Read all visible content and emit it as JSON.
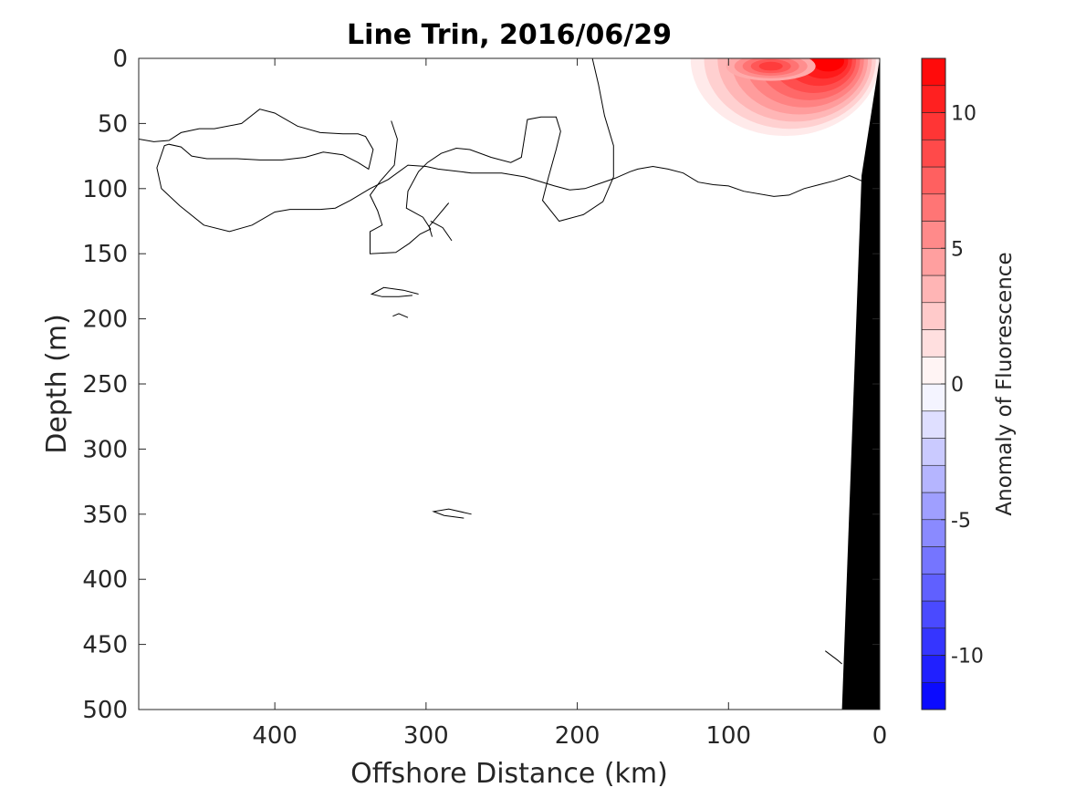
{
  "chart_data": {
    "type": "contour",
    "title": "Line Trin, 2016/06/29",
    "xlabel": "Offshore Distance (km)",
    "ylabel": "Depth (m)",
    "xlim": [
      490,
      0
    ],
    "ylim": [
      0,
      500
    ],
    "x_reversed": true,
    "y_reversed": true,
    "x_ticks": [
      400,
      300,
      200,
      100,
      0
    ],
    "y_ticks": [
      0,
      50,
      100,
      150,
      200,
      250,
      300,
      350,
      400,
      450,
      500
    ],
    "colorbar": {
      "label": "Anomaly of Fluorescence",
      "range": [
        -12,
        12
      ],
      "levels": [
        -12,
        -11,
        -10,
        -9,
        -8,
        -7,
        -6,
        -5,
        -4,
        -3,
        -2,
        -1,
        0,
        1,
        2,
        3,
        4,
        5,
        6,
        7,
        8,
        9,
        10,
        11,
        12
      ],
      "ticks": [
        -10,
        -5,
        0,
        5,
        10
      ],
      "colors": {
        "negative": "#0000ff",
        "zero": "#ffffff",
        "positive": "#ff0000"
      }
    },
    "contour_lines_km_m": [
      [
        [
          490,
          62
        ],
        [
          480,
          64
        ],
        [
          470,
          63
        ],
        [
          462,
          57
        ],
        [
          450,
          54
        ],
        [
          440,
          54
        ],
        [
          422,
          50
        ],
        [
          410,
          39
        ],
        [
          400,
          42
        ],
        [
          385,
          52
        ],
        [
          370,
          57
        ],
        [
          355,
          58
        ],
        [
          345,
          58
        ],
        [
          340,
          60
        ],
        [
          335,
          70
        ],
        [
          338,
          85
        ],
        [
          345,
          80
        ],
        [
          355,
          74
        ],
        [
          368,
          72
        ],
        [
          380,
          76
        ],
        [
          395,
          78
        ],
        [
          410,
          78
        ],
        [
          425,
          77
        ],
        [
          445,
          77
        ],
        [
          455,
          75
        ],
        [
          462,
          68
        ],
        [
          470,
          66
        ],
        [
          473,
          67
        ],
        [
          478,
          84
        ],
        [
          475,
          100
        ],
        [
          463,
          113
        ],
        [
          447,
          128
        ],
        [
          430,
          133
        ],
        [
          415,
          128
        ],
        [
          400,
          118
        ],
        [
          390,
          116
        ],
        [
          370,
          116
        ],
        [
          360,
          115
        ],
        [
          350,
          109
        ],
        [
          337,
          100
        ],
        [
          325,
          93
        ],
        [
          312,
          82
        ],
        [
          300,
          83
        ],
        [
          292,
          85
        ],
        [
          270,
          88
        ],
        [
          250,
          88
        ],
        [
          235,
          91
        ],
        [
          215,
          98
        ],
        [
          205,
          101
        ],
        [
          195,
          100
        ],
        [
          185,
          96
        ],
        [
          175,
          92
        ],
        [
          165,
          87
        ],
        [
          160,
          85
        ],
        [
          150,
          83
        ],
        [
          140,
          85
        ],
        [
          130,
          88
        ],
        [
          120,
          95
        ],
        [
          110,
          97
        ],
        [
          100,
          98
        ],
        [
          90,
          102
        ],
        [
          70,
          106
        ],
        [
          60,
          105
        ],
        [
          50,
          100
        ],
        [
          40,
          97
        ],
        [
          30,
          94
        ],
        [
          20,
          90
        ],
        [
          10,
          95
        ],
        [
          0,
          98
        ]
      ],
      [
        [
          190,
          0
        ],
        [
          186,
          20
        ],
        [
          182,
          44
        ],
        [
          176,
          67
        ],
        [
          176,
          91
        ],
        [
          183,
          110
        ],
        [
          196,
          120
        ],
        [
          212,
          125
        ],
        [
          223,
          109
        ],
        [
          219,
          91
        ],
        [
          214,
          70
        ],
        [
          211,
          56
        ],
        [
          214,
          45
        ],
        [
          224,
          45
        ],
        [
          233,
          47
        ],
        [
          237,
          76
        ],
        [
          244,
          80
        ],
        [
          257,
          76
        ],
        [
          271,
          70
        ],
        [
          280,
          69
        ],
        [
          290,
          73
        ],
        [
          299,
          80
        ],
        [
          305,
          87
        ],
        [
          312,
          102
        ],
        [
          313,
          115
        ],
        [
          302,
          122
        ],
        [
          297,
          131
        ],
        [
          304,
          135
        ],
        [
          311,
          142
        ],
        [
          320,
          149
        ],
        [
          337,
          150
        ],
        [
          337,
          133
        ],
        [
          329,
          128
        ],
        [
          332,
          117
        ],
        [
          337,
          105
        ],
        [
          330,
          94
        ],
        [
          321,
          82
        ],
        [
          319,
          62
        ],
        [
          323,
          48
        ]
      ],
      [
        [
          285,
          111
        ],
        [
          298,
          129
        ],
        [
          296,
          137
        ]
      ],
      [
        [
          283,
          140
        ],
        [
          289,
          130
        ],
        [
          297,
          125
        ]
      ],
      [
        [
          305,
          181
        ],
        [
          315,
          178
        ],
        [
          328,
          176
        ],
        [
          336,
          181
        ],
        [
          329,
          183
        ],
        [
          318,
          183
        ],
        [
          309,
          182
        ]
      ],
      [
        [
          270,
          350
        ],
        [
          285,
          346
        ],
        [
          295,
          348
        ],
        [
          288,
          351
        ],
        [
          275,
          353
        ]
      ],
      [
        [
          312,
          199
        ],
        [
          318,
          196
        ],
        [
          322,
          198
        ]
      ],
      [
        [
          0,
          440
        ],
        [
          5,
          437
        ],
        [
          0,
          472
        ],
        [
          10,
          471
        ],
        [
          1,
          474
        ]
      ],
      [
        [
          36,
          455
        ],
        [
          28,
          462
        ],
        [
          25,
          465
        ]
      ],
      [
        [
          0,
          500
        ],
        [
          5,
          505
        ]
      ]
    ],
    "positive_anomaly_patch": {
      "x_km": [
        115,
        10
      ],
      "depth_m": [
        0,
        50
      ],
      "peak_value": 12
    },
    "bathymetry": {
      "surface_edge_km": 0,
      "bottom_edge_km": 25,
      "fill_color": "#000000"
    }
  }
}
